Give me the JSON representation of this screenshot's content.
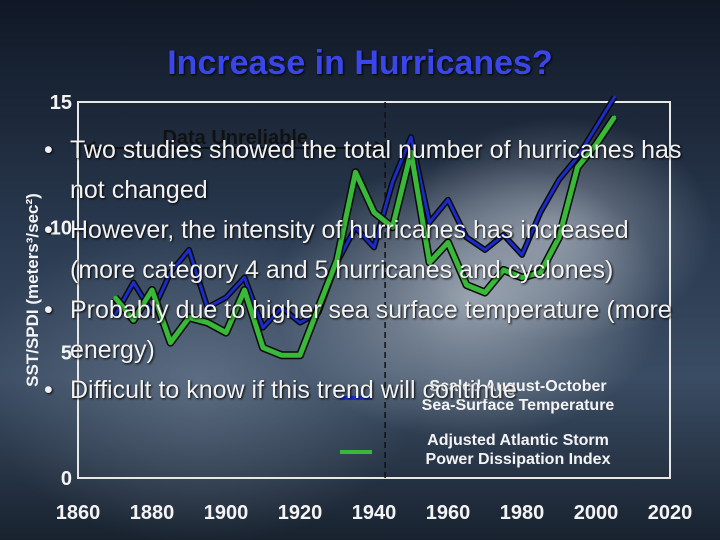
{
  "slide": {
    "title": "Increase in Hurricanes?",
    "bullets": [
      "Two studies showed the total number of hurricanes has not changed",
      "However, the intensity of hurricanes has increased (more category 4 and 5 hurricanes and cyclones)",
      "Probably due to higher sea surface temperature (more energy)",
      "Difficult to know if this trend will continue"
    ],
    "bullet_symbol": "•"
  },
  "chart_data": {
    "type": "line",
    "title": "",
    "annotation": "Data Unreliable",
    "xlabel": "",
    "ylabel": "SST/SPDI (meters³/sec²)",
    "xlim": [
      1860,
      2020
    ],
    "ylim": [
      0,
      15
    ],
    "xticks": [
      1860,
      1880,
      1900,
      1920,
      1940,
      1960,
      1980,
      2000,
      2020
    ],
    "yticks": [
      0,
      5,
      10,
      15
    ],
    "x": [
      1870,
      1875,
      1880,
      1885,
      1890,
      1895,
      1900,
      1905,
      1910,
      1915,
      1920,
      1925,
      1930,
      1935,
      1940,
      1945,
      1950,
      1955,
      1960,
      1965,
      1970,
      1975,
      1980,
      1985,
      1990,
      1995,
      2000,
      2005
    ],
    "series": [
      {
        "name": "Scaled August-October Sea-Surface Temperature",
        "color": "#1a2cc9",
        "values": [
          6.5,
          7.8,
          6.6,
          8.2,
          9.1,
          6.8,
          7.2,
          8.0,
          6.0,
          6.8,
          6.2,
          6.6,
          8.6,
          10.0,
          9.2,
          11.8,
          13.6,
          10.2,
          11.1,
          9.6,
          9.1,
          9.7,
          8.9,
          10.6,
          11.9,
          12.8,
          14.0,
          15.2
        ]
      },
      {
        "name": "Adjusted Atlantic Storm Power Dissipation Index",
        "color": "#3ab83a",
        "values": [
          7.2,
          6.3,
          7.5,
          5.4,
          6.4,
          6.2,
          5.8,
          7.5,
          5.2,
          4.9,
          4.9,
          6.8,
          8.7,
          12.2,
          10.6,
          10.0,
          13.0,
          8.6,
          9.4,
          7.7,
          7.4,
          8.3,
          8.0,
          8.2,
          9.6,
          12.4,
          13.3,
          14.4
        ]
      }
    ],
    "legend_position": "bottom-right",
    "grid": false
  }
}
